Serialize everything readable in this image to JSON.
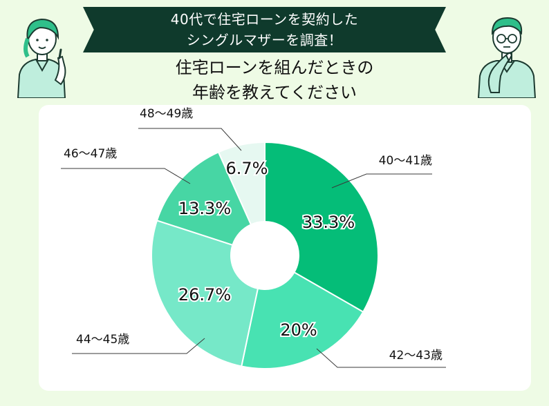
{
  "banner": {
    "line1": "40代で住宅ローンを契約した",
    "line2": "シングルマザーを調査！"
  },
  "question": {
    "line1": "住宅ローンを組んだときの",
    "line2": "年齢を教えてください"
  },
  "colors": {
    "background": "#eefbe5",
    "banner": "#0f3a2c",
    "card": "#ffffff"
  },
  "chart_data": {
    "type": "pie",
    "donut": true,
    "categories": [
      "40〜41歳",
      "42〜43歳",
      "44〜45歳",
      "46〜47歳",
      "48〜49歳"
    ],
    "values": [
      33.3,
      20,
      26.7,
      13.3,
      6.7
    ],
    "value_labels": [
      "33.3%",
      "20%",
      "26.7%",
      "13.3%",
      "6.7%"
    ],
    "colors": [
      "#05bd78",
      "#48e2b2",
      "#76e8c8",
      "#47d6a4",
      "#e6f8f1"
    ]
  }
}
